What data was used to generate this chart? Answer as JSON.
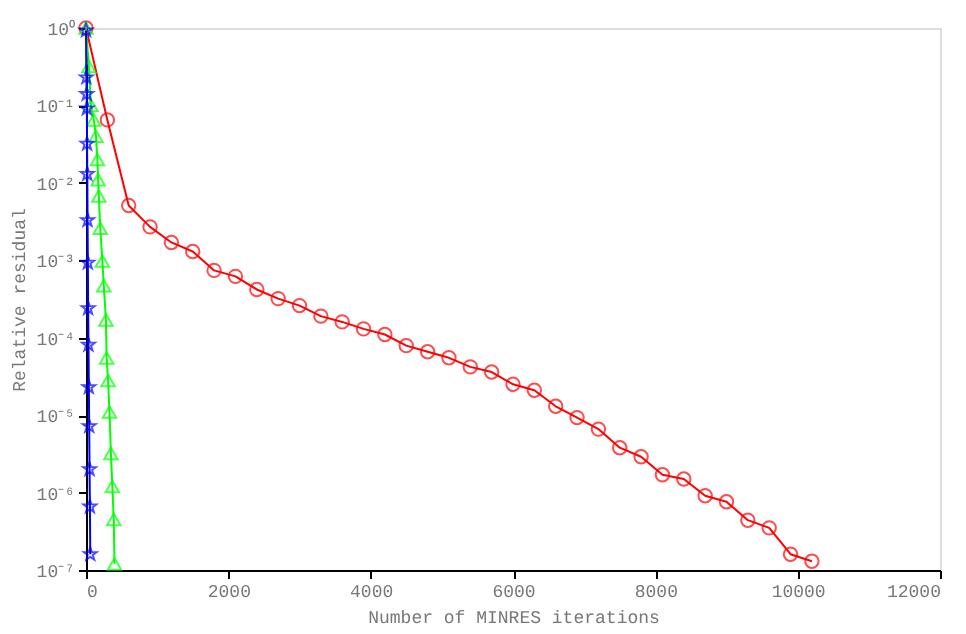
{
  "chart_data": {
    "type": "line",
    "xlabel": "Number of MINRES iterations",
    "ylabel": "Relative residual",
    "log": "y",
    "grid": false,
    "xlim": [
      0,
      12000
    ],
    "xticks": [
      0,
      2000,
      4000,
      6000,
      8000,
      10000,
      12000
    ],
    "ylim": [
      1e-07,
      1
    ],
    "yticks": [
      {
        "value": 1e-07,
        "label": "10⁻⁷"
      },
      {
        "value": 1e-06,
        "label": "10⁻⁶"
      },
      {
        "value": 1e-05,
        "label": "10⁻⁵"
      },
      {
        "value": 0.0001,
        "label": "10⁻⁴"
      },
      {
        "value": 0.001,
        "label": "10⁻³"
      },
      {
        "value": 0.01,
        "label": "10⁻²"
      },
      {
        "value": 0.1,
        "label": "10⁻¹"
      },
      {
        "value": 1,
        "label": "10⁰"
      }
    ],
    "series": [
      {
        "color": "#ff0000",
        "marker": "circle",
        "x": [
          0,
          300,
          600,
          900,
          1200,
          1500,
          1800,
          2100,
          2400,
          2700,
          3000,
          3300,
          3600,
          3900,
          4200,
          4500,
          4800,
          5100,
          5400,
          5700,
          6000,
          6300,
          6600,
          6900,
          7200,
          7500,
          7800,
          8100,
          8400,
          8700,
          9000,
          9300,
          9600,
          9900,
          10200
        ],
        "values": [
          1,
          0.065,
          0.0051,
          0.0027,
          0.0017,
          0.0013,
          0.00074,
          0.00062,
          0.00042,
          0.00032,
          0.00026,
          0.00019,
          0.00016,
          0.00013,
          0.00011,
          7.9e-05,
          6.6e-05,
          5.5e-05,
          4.2e-05,
          3.6e-05,
          2.5e-05,
          2.1e-05,
          1.3e-05,
          9.3e-06,
          6.6e-06,
          3.8e-06,
          2.9e-06,
          1.7e-06,
          1.5e-06,
          9.1e-07,
          7.6e-07,
          4.4e-07,
          3.5e-07,
          1.6e-07,
          1.3e-07
        ]
      },
      {
        "color": "#00ff00",
        "marker": "triangle",
        "x": [
          0,
          40,
          70,
          110,
          140,
          160,
          170,
          180,
          200,
          230,
          250,
          280,
          290,
          310,
          330,
          350,
          370,
          390,
          400
        ],
        "values": [
          1,
          0.32,
          0.1,
          0.065,
          0.04,
          0.02,
          0.011,
          0.0068,
          0.0026,
          0.00098,
          0.00047,
          0.00017,
          5.5e-05,
          2.8e-05,
          1.1e-05,
          3.2e-06,
          1.2e-06,
          4.5e-07,
          1.2e-07
        ]
      },
      {
        "color": "#0000ff",
        "marker": "star",
        "x": [
          0,
          5,
          10,
          12,
          15,
          18,
          22,
          26,
          30,
          35,
          40,
          45,
          50,
          55,
          60
        ],
        "values": [
          0.93,
          0.23,
          0.14,
          0.091,
          0.032,
          0.013,
          0.0033,
          0.00093,
          0.00024,
          8.1e-05,
          2.3e-05,
          7.2e-06,
          2e-06,
          6.6e-07,
          1.6e-07
        ]
      }
    ]
  }
}
